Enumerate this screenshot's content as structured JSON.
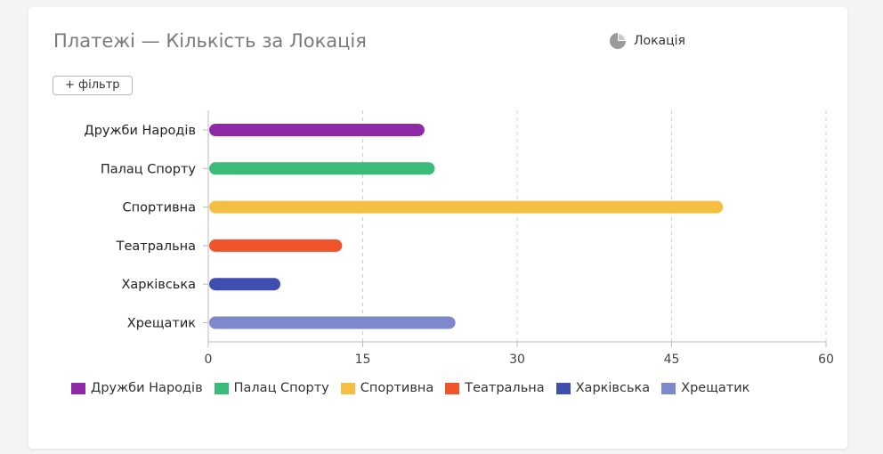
{
  "header": {
    "title": "Платежі — Кількість за Локація",
    "group_by_label": "Локація",
    "group_by_icon": "pie-chart-icon",
    "filter_button_label": "+ фільтр"
  },
  "chart_data": {
    "type": "bar",
    "orientation": "horizontal",
    "title": "Платежі — Кількість за Локація",
    "categories": [
      "Дружби Народів",
      "Палац Спорту",
      "Спортивна",
      "Театральна",
      "Харківська",
      "Хрещатик"
    ],
    "values": [
      21,
      22,
      50,
      13,
      7,
      24
    ],
    "colors": [
      "#8e2aa6",
      "#3cba7a",
      "#f4bf42",
      "#f0542c",
      "#3f4fb0",
      "#7e88cc"
    ],
    "xlim": [
      0,
      60
    ],
    "xticks": [
      "0",
      "15",
      "30",
      "45",
      "60"
    ],
    "grid": "vertical-dashed",
    "legend_position": "bottom"
  }
}
